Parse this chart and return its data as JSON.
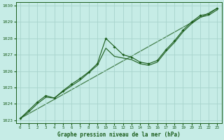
{
  "title": "Graphe pression niveau de la mer (hPa)",
  "background_color": "#c6ece6",
  "grid_color": "#a8d4cc",
  "line_color": "#1a5c1a",
  "xlim": [
    -0.5,
    23.5
  ],
  "ylim": [
    1022.8,
    1030.2
  ],
  "yticks": [
    1023,
    1024,
    1025,
    1026,
    1027,
    1028,
    1029,
    1030
  ],
  "xticks": [
    0,
    1,
    2,
    3,
    4,
    5,
    6,
    7,
    8,
    9,
    10,
    11,
    12,
    13,
    14,
    15,
    16,
    17,
    18,
    19,
    20,
    21,
    22,
    23
  ],
  "series1_x": [
    0,
    1,
    2,
    3,
    4,
    5,
    6,
    7,
    8,
    9,
    10,
    11,
    12,
    13,
    14,
    15,
    16,
    17,
    18,
    19,
    20,
    21,
    22,
    23
  ],
  "series1_y": [
    1023.1,
    1023.6,
    1024.1,
    1024.5,
    1024.35,
    1024.8,
    1025.2,
    1025.55,
    1025.95,
    1026.45,
    1028.0,
    1027.5,
    1027.0,
    1026.85,
    1026.55,
    1026.45,
    1026.65,
    1027.3,
    1027.85,
    1028.5,
    1029.0,
    1029.4,
    1029.5,
    1029.85
  ],
  "series2_x": [
    0,
    1,
    2,
    3,
    4,
    5,
    6,
    7,
    8,
    9,
    10,
    11,
    12,
    13,
    14,
    15,
    16,
    17,
    18,
    19,
    20,
    21,
    22,
    23
  ],
  "series2_y": [
    1023.1,
    1023.5,
    1024.0,
    1024.4,
    1024.35,
    1024.75,
    1025.1,
    1025.45,
    1025.9,
    1026.35,
    1027.4,
    1026.9,
    1026.8,
    1026.7,
    1026.45,
    1026.35,
    1026.55,
    1027.2,
    1027.75,
    1028.4,
    1028.9,
    1029.3,
    1029.42,
    1029.75
  ],
  "series3_x": [
    0,
    23
  ],
  "series3_y": [
    1023.1,
    1029.85
  ]
}
